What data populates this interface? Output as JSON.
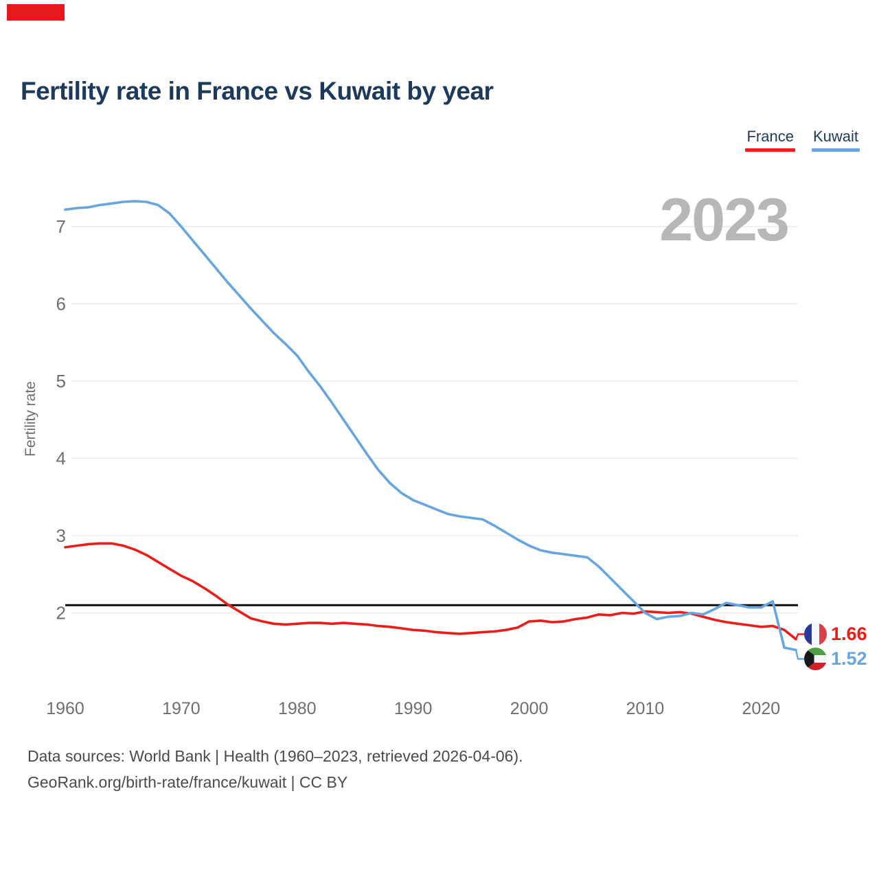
{
  "brand": {
    "color": "#e8191c"
  },
  "header": {
    "title": "Fertility rate in France vs Kuwait by year"
  },
  "legend": [
    {
      "label": "France",
      "color": "#ed1c18"
    },
    {
      "label": "Kuwait",
      "color": "#66a5de"
    }
  ],
  "watermark": "2023",
  "chart_data": {
    "type": "line",
    "title": "Fertility rate in France vs Kuwait by year",
    "xlabel": "",
    "ylabel": "Fertility rate",
    "xlim": [
      1960,
      2023
    ],
    "ylim": [
      1.4,
      7.6
    ],
    "grid": true,
    "legend_position": "top-right",
    "yticks": [
      2,
      3,
      4,
      5,
      6,
      7
    ],
    "xticks": [
      1960,
      1970,
      1980,
      1990,
      2000,
      2010,
      2020
    ],
    "reference_line": {
      "value": 2.1,
      "color": "#0d0d0d"
    },
    "x": [
      1960,
      1961,
      1962,
      1963,
      1964,
      1965,
      1966,
      1967,
      1968,
      1969,
      1970,
      1971,
      1972,
      1973,
      1974,
      1975,
      1976,
      1977,
      1978,
      1979,
      1980,
      1981,
      1982,
      1983,
      1984,
      1985,
      1986,
      1987,
      1988,
      1989,
      1990,
      1991,
      1992,
      1993,
      1994,
      1995,
      1996,
      1997,
      1998,
      1999,
      2000,
      2001,
      2002,
      2003,
      2004,
      2005,
      2006,
      2007,
      2008,
      2009,
      2010,
      2011,
      2012,
      2013,
      2014,
      2015,
      2016,
      2017,
      2018,
      2019,
      2020,
      2021,
      2022,
      2023
    ],
    "series": [
      {
        "name": "France",
        "color": "#ed1c18",
        "values": [
          2.85,
          2.87,
          2.89,
          2.9,
          2.9,
          2.87,
          2.82,
          2.75,
          2.66,
          2.57,
          2.48,
          2.41,
          2.32,
          2.22,
          2.11,
          2.02,
          1.93,
          1.89,
          1.86,
          1.85,
          1.86,
          1.87,
          1.87,
          1.86,
          1.87,
          1.86,
          1.85,
          1.83,
          1.82,
          1.8,
          1.78,
          1.77,
          1.75,
          1.74,
          1.73,
          1.74,
          1.75,
          1.76,
          1.78,
          1.81,
          1.89,
          1.9,
          1.88,
          1.89,
          1.92,
          1.94,
          1.98,
          1.97,
          2.0,
          1.99,
          2.02,
          2.01,
          2.0,
          2.01,
          1.99,
          1.95,
          1.91,
          1.88,
          1.86,
          1.84,
          1.82,
          1.83,
          1.78,
          1.66
        ]
      },
      {
        "name": "Kuwait",
        "color": "#66a5de",
        "values": [
          7.22,
          7.24,
          7.25,
          7.28,
          7.3,
          7.32,
          7.33,
          7.32,
          7.28,
          7.17,
          7.0,
          6.82,
          6.64,
          6.46,
          6.28,
          6.11,
          5.94,
          5.78,
          5.62,
          5.48,
          5.33,
          5.12,
          4.93,
          4.72,
          4.5,
          4.28,
          4.06,
          3.85,
          3.68,
          3.55,
          3.46,
          3.4,
          3.34,
          3.28,
          3.25,
          3.23,
          3.21,
          3.13,
          3.04,
          2.95,
          2.87,
          2.81,
          2.78,
          2.76,
          2.74,
          2.72,
          2.6,
          2.45,
          2.3,
          2.15,
          2.0,
          1.92,
          1.95,
          1.96,
          2.0,
          1.98,
          2.05,
          2.13,
          2.1,
          2.07,
          2.07,
          2.15,
          1.55,
          1.52
        ]
      }
    ]
  },
  "end_labels": [
    {
      "series": "France",
      "value": "1.66",
      "flag": "france-flag-icon"
    },
    {
      "series": "Kuwait",
      "value": "1.52",
      "flag": "kuwait-flag-icon"
    }
  ],
  "footer": {
    "line1": "Data sources: World Bank | Health (1960–2023, retrieved 2026-04-06).",
    "line2": "GeoRank.org/birth-rate/france/kuwait | CC BY"
  }
}
